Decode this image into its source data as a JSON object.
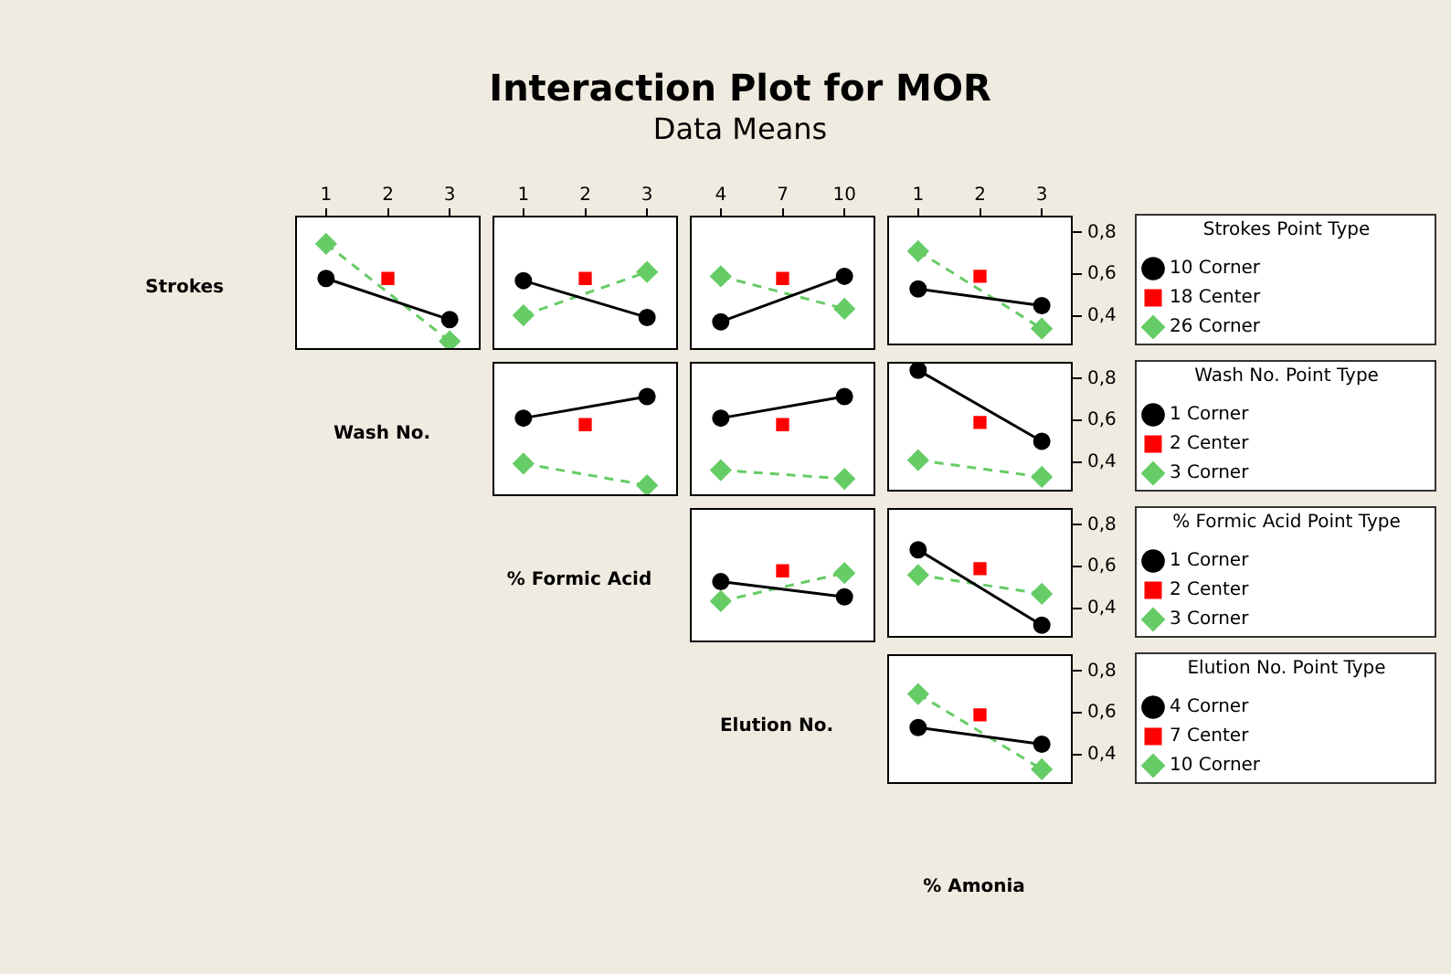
{
  "chart_data": [
    {
      "type": "line",
      "ylabel": "Strokes",
      "categories": [
        "1",
        "2",
        "3"
      ],
      "ylim": [
        0.26,
        0.88
      ],
      "tick_labels": "x",
      "series": [
        {
          "color": "#000000",
          "marker": "circle",
          "line_style": "solid",
          "values": [
            0.59,
            null,
            0.4
          ]
        },
        {
          "color": "#ff0000",
          "marker": "square",
          "line_style": "solid",
          "values": [
            null,
            0.59,
            null
          ]
        },
        {
          "color": "#66cc66",
          "marker": "diamond",
          "line_style": "dashed",
          "values": [
            0.75,
            null,
            0.3
          ]
        }
      ]
    },
    {
      "type": "line",
      "categories": [
        "1",
        "2",
        "3"
      ],
      "ylim": [
        0.26,
        0.88
      ],
      "tick_labels": "x",
      "series": [
        {
          "color": "#000000",
          "marker": "circle",
          "line_style": "solid",
          "values": [
            0.58,
            null,
            0.41
          ]
        },
        {
          "color": "#ff0000",
          "marker": "square",
          "line_style": "solid",
          "values": [
            null,
            0.59,
            null
          ]
        },
        {
          "color": "#66cc66",
          "marker": "diamond",
          "line_style": "dashed",
          "values": [
            0.42,
            null,
            0.62
          ]
        }
      ]
    },
    {
      "type": "line",
      "title": "Interaction Plot for MOR",
      "subtitle": "Data Means",
      "categories": [
        "4",
        "7",
        "10"
      ],
      "ylim": [
        0.26,
        0.88
      ],
      "tick_labels": "x",
      "series": [
        {
          "color": "#000000",
          "marker": "circle",
          "line_style": "solid",
          "values": [
            0.39,
            null,
            0.6
          ]
        },
        {
          "color": "#ff0000",
          "marker": "square",
          "line_style": "solid",
          "values": [
            null,
            0.59,
            null
          ]
        },
        {
          "color": "#66cc66",
          "marker": "diamond",
          "line_style": "dashed",
          "values": [
            0.6,
            null,
            0.45
          ]
        }
      ]
    },
    {
      "type": "line",
      "categories": [
        "1",
        "2",
        "3"
      ],
      "ylim": [
        0.26,
        0.88
      ],
      "yticks": [
        {
          "value": 0.4,
          "label": "0,4"
        },
        {
          "value": 0.6,
          "label": "0,6"
        },
        {
          "value": 0.8,
          "label": "0,8"
        }
      ],
      "legend": "right",
      "legend_title": "Strokes Point Type",
      "series": [
        {
          "name": "10 Corner",
          "color": "#000000",
          "marker": "circle",
          "line_style": "solid",
          "values": [
            0.53,
            null,
            0.45
          ]
        },
        {
          "name": "18 Center",
          "color": "#ff0000",
          "marker": "square",
          "line_style": "solid",
          "values": [
            null,
            0.59,
            null
          ]
        },
        {
          "name": "26 Corner",
          "color": "#66cc66",
          "marker": "diamond",
          "line_style": "dashed",
          "values": [
            0.71,
            null,
            0.34
          ]
        }
      ]
    },
    {
      "type": "line",
      "ylabel": "Wash No.",
      "categories": [
        "1",
        "2",
        "3"
      ],
      "ylim": [
        0.26,
        0.88
      ],
      "tick_labels": false,
      "series": [
        {
          "color": "#000000",
          "marker": "circle",
          "line_style": "solid",
          "values": [
            0.62,
            null,
            0.72
          ]
        },
        {
          "color": "#ff0000",
          "marker": "square",
          "line_style": "solid",
          "values": [
            null,
            0.59,
            null
          ]
        },
        {
          "color": "#66cc66",
          "marker": "diamond",
          "line_style": "dashed",
          "values": [
            0.41,
            null,
            0.31
          ]
        }
      ]
    },
    {
      "type": "line",
      "categories": [
        "4",
        "7",
        "10"
      ],
      "ylim": [
        0.26,
        0.88
      ],
      "tick_labels": false,
      "series": [
        {
          "color": "#000000",
          "marker": "circle",
          "line_style": "solid",
          "values": [
            0.62,
            null,
            0.72
          ]
        },
        {
          "color": "#ff0000",
          "marker": "square",
          "line_style": "solid",
          "values": [
            null,
            0.59,
            null
          ]
        },
        {
          "color": "#66cc66",
          "marker": "diamond",
          "line_style": "dashed",
          "values": [
            0.38,
            null,
            0.34
          ]
        }
      ]
    },
    {
      "type": "line",
      "categories": [
        "1",
        "2",
        "3"
      ],
      "ylim": [
        0.26,
        0.88
      ],
      "yticks": [
        {
          "value": 0.4,
          "label": "0,4"
        },
        {
          "value": 0.6,
          "label": "0,6"
        },
        {
          "value": 0.8,
          "label": "0,8"
        }
      ],
      "tick_labels": "y",
      "legend": "right",
      "legend_title": "Wash No. Point Type",
      "series": [
        {
          "name": "1 Corner",
          "color": "#000000",
          "marker": "circle",
          "line_style": "solid",
          "values": [
            0.84,
            null,
            0.5
          ]
        },
        {
          "name": "2 Center",
          "color": "#ff0000",
          "marker": "square",
          "line_style": "solid",
          "values": [
            null,
            0.59,
            null
          ]
        },
        {
          "name": "3 Corner",
          "color": "#66cc66",
          "marker": "diamond",
          "line_style": "dashed",
          "values": [
            0.41,
            null,
            0.33
          ]
        }
      ]
    },
    {
      "type": "line",
      "ylabel": "% Formic Acid",
      "categories": [
        "4",
        "7",
        "10"
      ],
      "ylim": [
        0.26,
        0.88
      ],
      "tick_labels": false,
      "series": [
        {
          "color": "#000000",
          "marker": "circle",
          "line_style": "solid",
          "values": [
            0.54,
            null,
            0.47
          ]
        },
        {
          "color": "#ff0000",
          "marker": "square",
          "line_style": "solid",
          "values": [
            null,
            0.59,
            null
          ]
        },
        {
          "color": "#66cc66",
          "marker": "diamond",
          "line_style": "dashed",
          "values": [
            0.45,
            null,
            0.58
          ]
        }
      ]
    },
    {
      "type": "line",
      "categories": [
        "1",
        "2",
        "3"
      ],
      "ylim": [
        0.26,
        0.88
      ],
      "yticks": [
        {
          "value": 0.4,
          "label": "0,4"
        },
        {
          "value": 0.6,
          "label": "0,6"
        },
        {
          "value": 0.8,
          "label": "0,8"
        }
      ],
      "tick_labels": "y",
      "legend": "right",
      "legend_title": "% Formic Acid Point Type",
      "series": [
        {
          "name": "1 Corner",
          "color": "#000000",
          "marker": "circle",
          "line_style": "solid",
          "values": [
            0.68,
            null,
            0.32
          ]
        },
        {
          "name": "2 Center",
          "color": "#ff0000",
          "marker": "square",
          "line_style": "solid",
          "values": [
            null,
            0.59,
            null
          ]
        },
        {
          "name": "3 Corner",
          "color": "#66cc66",
          "marker": "diamond",
          "line_style": "dashed",
          "values": [
            0.56,
            null,
            0.47
          ]
        }
      ]
    },
    {
      "type": "line",
      "ylabel": "Elution No.",
      "xlabel": "% Amonia",
      "categories": [
        "1",
        "2",
        "3"
      ],
      "ylim": [
        0.26,
        0.88
      ],
      "yticks": [
        {
          "value": 0.4,
          "label": "0,4"
        },
        {
          "value": 0.6,
          "label": "0,6"
        },
        {
          "value": 0.8,
          "label": "0,8"
        }
      ],
      "tick_labels": "y",
      "legend": "right",
      "legend_title": "Elution No. Point Type",
      "series": [
        {
          "name": "4 Corner",
          "color": "#000000",
          "marker": "circle",
          "line_style": "solid",
          "values": [
            0.53,
            null,
            0.45
          ]
        },
        {
          "name": "7 Center",
          "color": "#ff0000",
          "marker": "square",
          "line_style": "solid",
          "values": [
            null,
            0.59,
            null
          ]
        },
        {
          "name": "10 Corner",
          "color": "#66cc66",
          "marker": "diamond",
          "line_style": "dashed",
          "values": [
            0.69,
            null,
            0.33
          ]
        }
      ]
    }
  ]
}
